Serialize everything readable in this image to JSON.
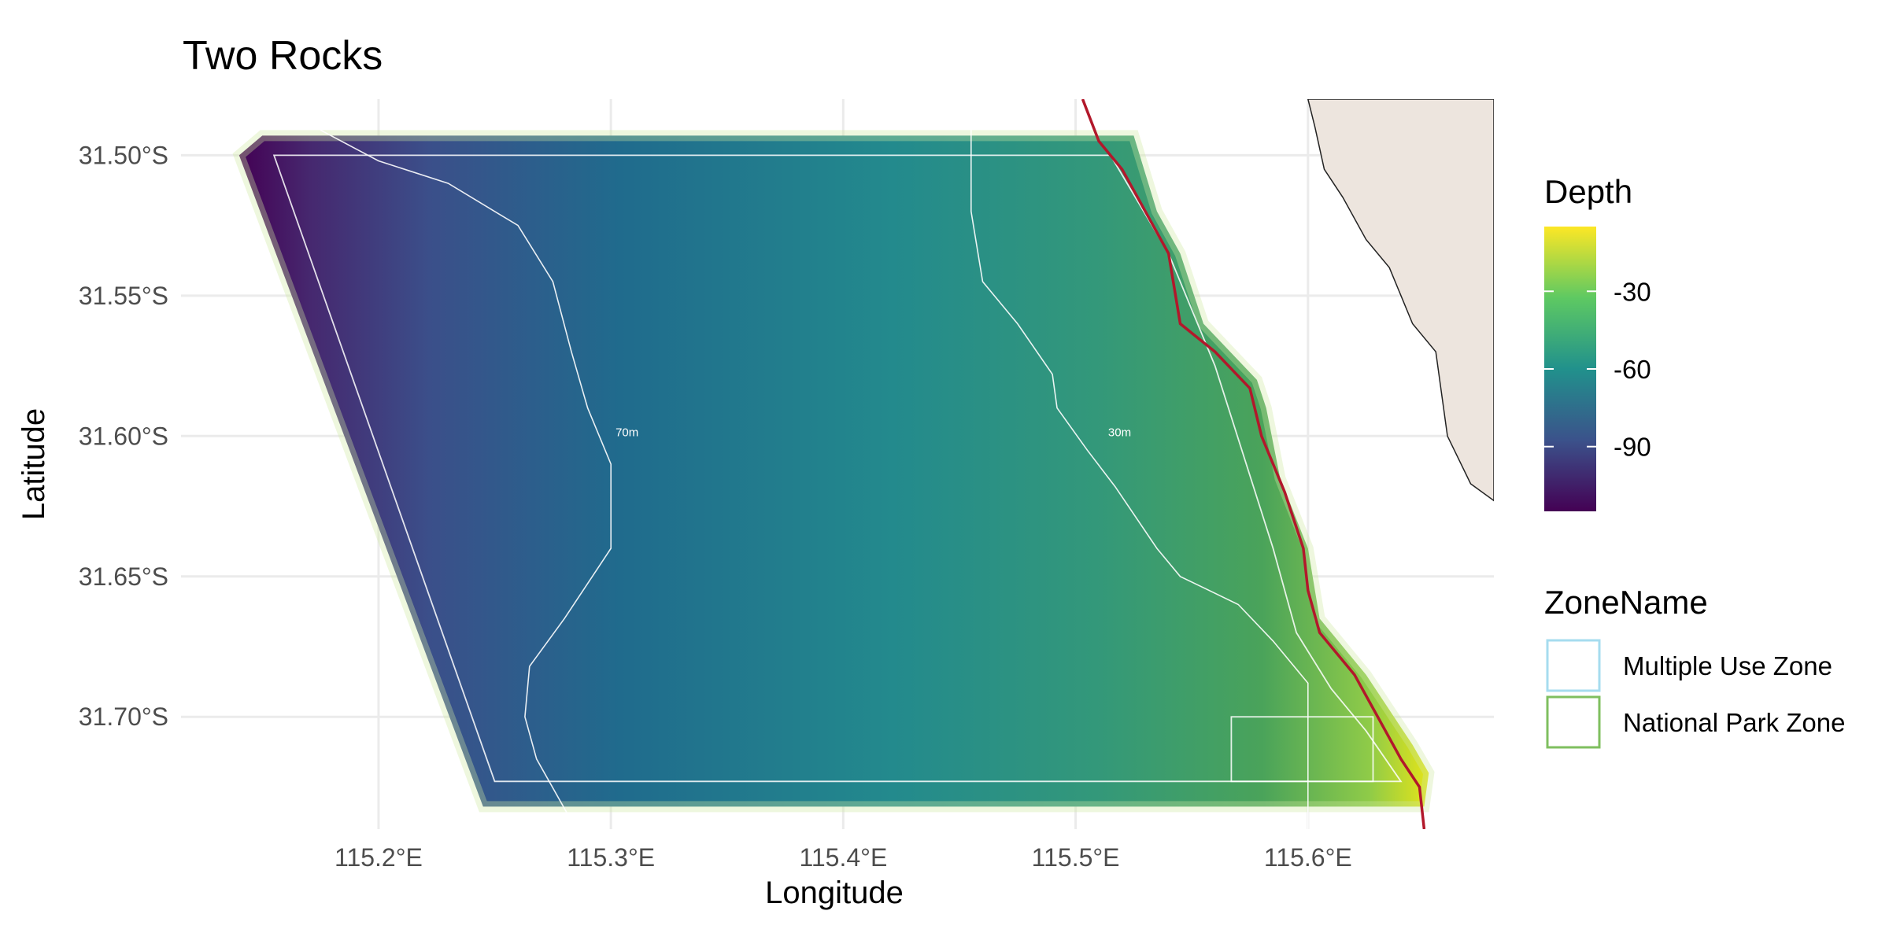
{
  "chart_data": {
    "type": "heatmap",
    "title": "Two Rocks",
    "xlabel": "Longitude",
    "ylabel": "Latitude",
    "xlim": [
      115.115,
      115.68
    ],
    "ylim": [
      -31.74,
      -31.48
    ],
    "x_ticks": [
      115.2,
      115.3,
      115.4,
      115.5,
      115.6
    ],
    "x_tick_labels": [
      "115.2°E",
      "115.3°E",
      "115.4°E",
      "115.5°E",
      "115.6°E"
    ],
    "y_ticks": [
      -31.5,
      -31.55,
      -31.6,
      -31.65,
      -31.7
    ],
    "y_tick_labels": [
      "31.50°S",
      "31.55°S",
      "31.60°S",
      "31.65°S",
      "31.70°S"
    ],
    "grid": true,
    "depth_legend": {
      "title": "Depth",
      "range": [
        -115,
        -5
      ],
      "ticks": [
        -30,
        -60,
        -90
      ],
      "tick_labels": [
        "-30",
        "-60",
        "-90"
      ],
      "colors": [
        "#440154",
        "#3b528b",
        "#21918c",
        "#5ec962",
        "#fde725"
      ]
    },
    "zone_legend": {
      "title": "ZoneName",
      "entries": [
        {
          "label": "Multiple Use Zone",
          "color": "#a6dcef"
        },
        {
          "label": "National Park Zone",
          "color": "#7fbf5f"
        }
      ]
    },
    "contours": [
      {
        "label": "70m",
        "label_lon": 115.302,
        "label_lat": -31.6
      },
      {
        "label": "30m",
        "label_lon": 115.514,
        "label_lat": -31.6
      }
    ],
    "land_color": "#ede5de",
    "coastline_color": "#b2182b"
  }
}
